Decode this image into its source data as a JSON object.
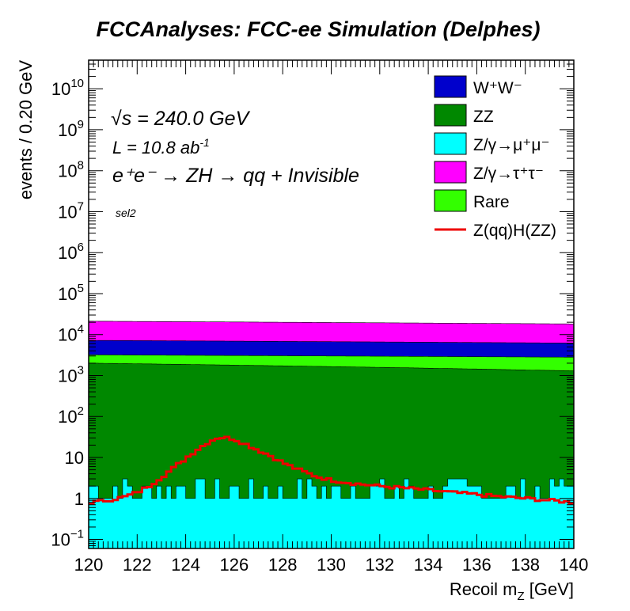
{
  "chart_data": {
    "type": "area",
    "title": "FCCAnalyses: FCC-ee Simulation (Delphes)",
    "xlabel": "Recoil m_Z [GeV]",
    "ylabel": "events / 0.20 GeV",
    "xlim": [
      120,
      140
    ],
    "ylim": [
      0.06,
      50000000000
    ],
    "log_y": true,
    "grid": false,
    "legend_position": "top-right",
    "x_ticks": [
      "120",
      "122",
      "124",
      "126",
      "128",
      "130",
      "132",
      "134",
      "136",
      "138",
      "140"
    ],
    "y_ticks": [
      {
        "base": "10",
        "exp": "−1",
        "value": 0.1
      },
      {
        "base": "1",
        "exp": "",
        "value": 1
      },
      {
        "base": "10",
        "exp": "",
        "value": 10
      },
      {
        "base": "10",
        "exp": "2",
        "value": 100
      },
      {
        "base": "10",
        "exp": "3",
        "value": 1000
      },
      {
        "base": "10",
        "exp": "4",
        "value": 10000
      },
      {
        "base": "10",
        "exp": "5",
        "value": 100000
      },
      {
        "base": "10",
        "exp": "6",
        "value": 1000000
      },
      {
        "base": "10",
        "exp": "7",
        "value": 10000000
      },
      {
        "base": "10",
        "exp": "8",
        "value": 100000000
      },
      {
        "base": "10",
        "exp": "9",
        "value": 1000000000
      },
      {
        "base": "10",
        "exp": "10",
        "value": 10000000000
      }
    ],
    "annotations": {
      "sqrt_s": "√s = 240.0 GeV",
      "lumi_prefix": "L = 10.8 ab",
      "lumi_exp": "-1",
      "process": "e⁺e⁻ → ZH → qq + Invisible",
      "selection": "sel2"
    },
    "legend": [
      {
        "label": "W⁺W⁻",
        "kind": "box",
        "color": "#0000cc"
      },
      {
        "label": "ZZ",
        "kind": "box",
        "color": "#008800"
      },
      {
        "label": "Z/γ→μ⁺μ⁻",
        "kind": "box",
        "color": "#00ffff"
      },
      {
        "label": "Z/γ→τ⁺τ⁻",
        "kind": "box",
        "color": "#ff00ff"
      },
      {
        "label": "Rare",
        "kind": "box",
        "color": "#33ff00"
      },
      {
        "label": "Z(qq)H(ZZ)",
        "kind": "line",
        "color": "#ee0000"
      }
    ],
    "stacked_series": [
      {
        "name": "Z/γ→μ⁺μ⁻",
        "color": "#00ffff",
        "description": "fluctuating 1–3 events per bin (bottom of stack)",
        "typical_range": [
          1,
          3
        ]
      },
      {
        "name": "ZZ",
        "color": "#008800",
        "start": 2000,
        "end": 1300
      },
      {
        "name": "Rare",
        "color": "#33ff00",
        "start": 1200,
        "end": 1500
      },
      {
        "name": "W⁺W⁻",
        "color": "#0000cc",
        "start": 4000,
        "end": 3400
      },
      {
        "name": "Z/γ→τ⁺τ⁻",
        "color": "#ff00ff",
        "start": 14000,
        "end": 12000
      }
    ],
    "signal_series": {
      "name": "Z(qq)H(ZZ)",
      "color": "#ee0000",
      "x": [
        120,
        120.5,
        121,
        121.5,
        122,
        122.5,
        123,
        123.5,
        124,
        124.5,
        125,
        125.3,
        125.6,
        126,
        126.5,
        127,
        127.5,
        128,
        128.5,
        129,
        129.5,
        130,
        131,
        132,
        133,
        134,
        135,
        136,
        137,
        138,
        139,
        140
      ],
      "y": [
        0.8,
        0.85,
        0.95,
        1.1,
        1.4,
        2.0,
        3.3,
        5.5,
        9.5,
        16,
        25,
        30,
        31,
        28,
        21,
        15,
        11,
        7.5,
        5.5,
        4.2,
        3.3,
        2.8,
        2.3,
        2.0,
        1.8,
        1.6,
        1.4,
        1.25,
        1.1,
        1.0,
        0.9,
        0.8
      ]
    }
  }
}
